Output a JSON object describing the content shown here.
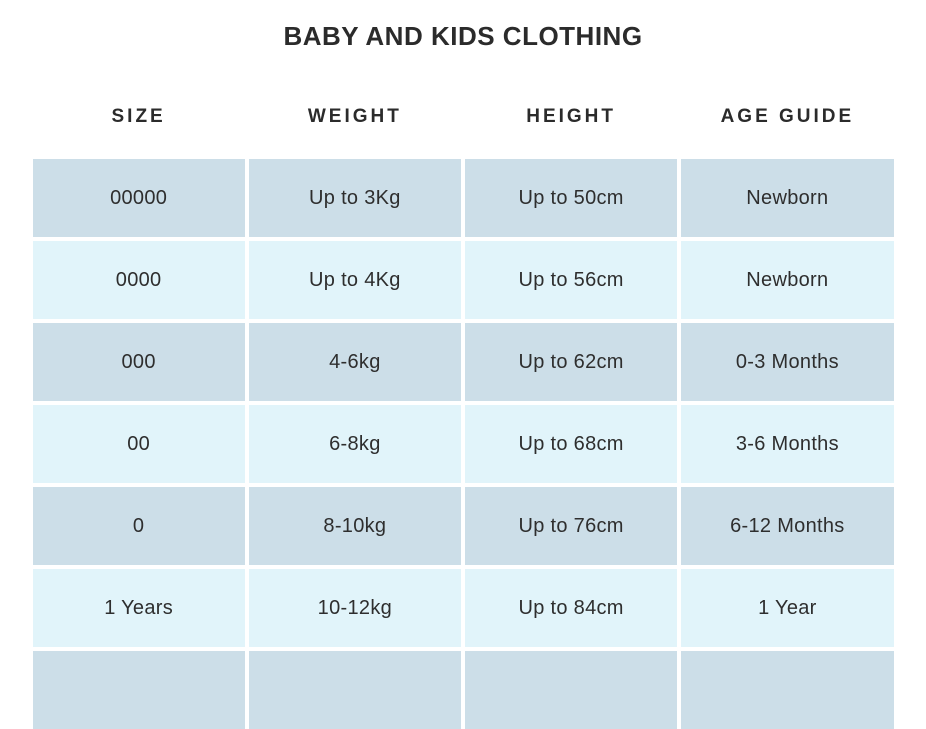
{
  "page": {
    "title": "BABY AND KIDS CLOTHING"
  },
  "table": {
    "columns": [
      "SIZE",
      "WEIGHT",
      "HEIGHT",
      "AGE GUIDE"
    ],
    "rows": [
      [
        "00000",
        "Up to 3Kg",
        "Up to 50cm",
        "Newborn"
      ],
      [
        "0000",
        "Up to 4Kg",
        "Up to 56cm",
        "Newborn"
      ],
      [
        "000",
        "4-6kg",
        "Up to 62cm",
        "0-3 Months"
      ],
      [
        "00",
        "6-8kg",
        "Up to 68cm",
        "3-6 Months"
      ],
      [
        "0",
        "8-10kg",
        "Up to 76cm",
        "6-12 Months"
      ],
      [
        "1 Years",
        "10-12kg",
        "Up to 84cm",
        "1 Year"
      ],
      [
        "",
        "",
        "",
        ""
      ]
    ],
    "colors": {
      "row_dark": "#ccdee8",
      "row_light": "#e1f4fa",
      "text": "#2e2e2e"
    }
  }
}
